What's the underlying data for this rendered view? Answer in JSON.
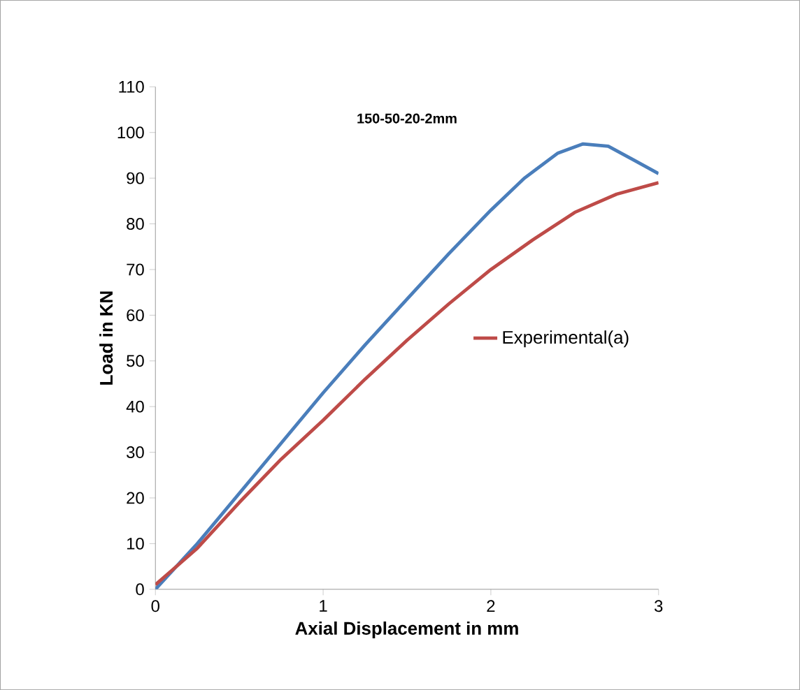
{
  "chart_data": {
    "type": "line",
    "title": "150-50-20-2mm",
    "xlabel": "Axial Displacement in mm",
    "ylabel": "Load in KN",
    "xlim": [
      0,
      3
    ],
    "xticks": [
      0,
      1,
      2,
      3
    ],
    "ylim": [
      0,
      110
    ],
    "yticks": [
      0,
      10,
      20,
      30,
      40,
      50,
      60,
      70,
      80,
      90,
      100,
      110
    ],
    "grid": false,
    "legend": "right",
    "marker": "none",
    "line_style": "solid",
    "series": [
      {
        "color": "#4a7ebb",
        "x": [
          0,
          0.25,
          0.5,
          0.75,
          1,
          1.25,
          1.5,
          1.75,
          2,
          2.2,
          2.4,
          2.55,
          2.7,
          2.85,
          3
        ],
        "values": [
          0,
          10,
          21,
          32,
          43,
          53.5,
          63.5,
          73.5,
          83,
          90,
          95.5,
          97.5,
          97,
          94,
          91
        ]
      },
      {
        "name": "Experimental(a)",
        "color": "#be4b48",
        "x": [
          0,
          0.25,
          0.5,
          0.75,
          1,
          1.25,
          1.5,
          1.75,
          2,
          2.25,
          2.5,
          2.75,
          3
        ],
        "values": [
          1,
          9,
          19,
          28.5,
          37,
          46,
          54.5,
          62.5,
          70,
          76.5,
          82.5,
          86.5,
          89
        ]
      }
    ]
  }
}
